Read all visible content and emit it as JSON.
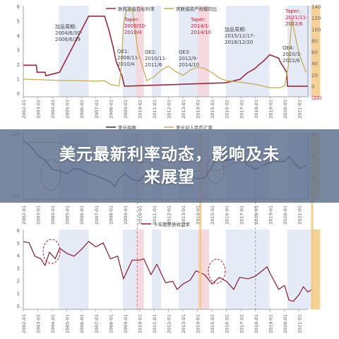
{
  "banner": {
    "line1": "美元最新利率动态，影响及未",
    "line2": "来展望"
  },
  "colors": {
    "fed": "#9b2a3e",
    "balance": "#c8a84a",
    "dxy": "#27285a",
    "cny": "#c9a86a",
    "ust10y": "#8a1a28",
    "easing_band": "#dfe6f5",
    "tightening_band": "#f7d7dc",
    "taper_band": "#f6c980",
    "annotation_red": "#d8142c",
    "circle": "#c0182c"
  },
  "chart_data": [
    {
      "type": "line",
      "x_ticks": [
        "2002-01",
        "2003-01",
        "2004-01",
        "2005-01",
        "2006-01",
        "2007-01",
        "2008-01",
        "2009-01",
        "2010-01",
        "2011-01",
        "2012-01",
        "2013-01",
        "2014-01",
        "2015-01",
        "2016-01",
        "2017-01",
        "2018-01",
        "2019-01",
        "2020-01",
        "2021-01"
      ],
      "legend": [
        "联邦基金目标利率",
        "美联储资产规模同比"
      ],
      "yleft_ticks": [
        "6",
        "5",
        "4",
        "3",
        "2",
        "1",
        "0"
      ],
      "yright_ticks": [
        "140",
        "120",
        "100",
        "80",
        "60",
        "40",
        "20",
        "0",
        "(20)"
      ],
      "ylim_left": [
        -0.5,
        6
      ],
      "ylim_right": [
        -25,
        145
      ],
      "series": [
        {
          "name": "联邦基金目标利率",
          "axis": "left",
          "x": [
            2002.0,
            2002.9,
            2002.95,
            2003.5,
            2003.55,
            2004.5,
            2005.0,
            2005.5,
            2006.0,
            2006.5,
            2007.6,
            2007.9,
            2008.2,
            2008.4,
            2008.8,
            2008.97,
            2015.95,
            2016.95,
            2017.2,
            2017.5,
            2017.95,
            2018.2,
            2018.5,
            2018.75,
            2018.97,
            2019.6,
            2019.7,
            2019.85,
            2020.15,
            2020.2,
            2021.6
          ],
          "y": [
            1.75,
            1.75,
            1.25,
            1.25,
            1.0,
            1.25,
            2.25,
            3.25,
            4.25,
            5.25,
            5.25,
            4.25,
            3.0,
            2.0,
            1.0,
            0.25,
            0.5,
            0.75,
            1.0,
            1.25,
            1.5,
            1.75,
            2.0,
            2.25,
            2.5,
            2.25,
            2.0,
            1.75,
            1.25,
            0.25,
            0.25
          ]
        },
        {
          "name": "美联储资产规模同比",
          "axis": "right",
          "x": [
            2002.0,
            2003.0,
            2004.0,
            2005.0,
            2006.0,
            2007.0,
            2007.6,
            2008.0,
            2008.6,
            2008.75,
            2008.9,
            2009.1,
            2009.5,
            2009.9,
            2010.5,
            2011.0,
            2011.5,
            2012.0,
            2012.5,
            2013.0,
            2013.5,
            2014.0,
            2014.5,
            2015.0,
            2015.5,
            2016.0,
            2017.0,
            2018.0,
            2018.5,
            2019.0,
            2019.7,
            2020.0,
            2020.25,
            2020.5,
            2021.0,
            2021.5
          ],
          "y": [
            8,
            7,
            6,
            5,
            5,
            4,
            5,
            -2,
            -5,
            30,
            110,
            135,
            140,
            60,
            5,
            12,
            25,
            32,
            22,
            15,
            25,
            30,
            28,
            20,
            10,
            5,
            2,
            -2,
            -5,
            -8,
            -8,
            -5,
            30,
            120,
            55,
            20
          ]
        }
      ],
      "annotations": [
        {
          "text": "加息周期:\n2004/6/30-\n2006/6/29",
          "color": "#444"
        },
        {
          "text": "Taper:\n2009/10-\n2010/4",
          "color": "#d8142c"
        },
        {
          "text": "QE1:\n2008/11-\n2010/4",
          "color": "#444"
        },
        {
          "text": "QE2:\n2010/11-\n2011/6",
          "color": "#444"
        },
        {
          "text": "QE3:\n2012/9-\n2014/10",
          "color": "#444"
        },
        {
          "text": "Taper:\n2014/1-\n2014/10",
          "color": "#d8142c"
        },
        {
          "text": "加息周期:\n2015/12/17-\n2018/12/20",
          "color": "#444"
        },
        {
          "text": "Taper:\n2021/11-\n2022/6",
          "color": "#d8142c"
        },
        {
          "text": "QE4:\n2020/3-\n2022/6",
          "color": "#444"
        }
      ]
    },
    {
      "type": "line",
      "x_ticks": [
        "2002-01",
        "2003-01",
        "2004-01",
        "2005-01",
        "2006-01",
        "2007-01",
        "2008-01",
        "2009-01",
        "2010-01",
        "2011-01",
        "2012-01",
        "2013-01",
        "2014-01",
        "2015-01",
        "2016-01",
        "2017-01",
        "2018-01",
        "2019-01",
        "2020-01",
        "2021-01"
      ],
      "legend": [
        "美元指数",
        "美元兑人民币汇率"
      ],
      "yleft_ticks": [
        "120",
        "100"
      ],
      "yright_ticks": [
        "9",
        "8",
        "7",
        "6"
      ],
      "ylim_left": [
        60,
        125
      ],
      "ylim_right": [
        4,
        9
      ],
      "series": [
        {
          "name": "美元指数",
          "axis": "left",
          "x": [
            2002.0,
            2002.5,
            2003.0,
            2003.5,
            2004.0,
            2004.5,
            2005.0,
            2005.5,
            2006.0,
            2006.5,
            2007.0,
            2007.5,
            2008.0,
            2008.3,
            2008.6,
            2009.0,
            2009.5,
            2010.0,
            2010.5,
            2011.0,
            2011.5,
            2012.0,
            2012.5,
            2013.0,
            2013.5,
            2014.0,
            2014.5,
            2015.0,
            2015.3,
            2016.0,
            2017.0,
            2017.5,
            2018.0,
            2018.5,
            2019.0,
            2019.5,
            2020.0,
            2020.3,
            2020.8,
            2021.0,
            2021.5
          ],
          "y": [
            117,
            112,
            103,
            98,
            89,
            88,
            85,
            90,
            89,
            85,
            83,
            80,
            77,
            72,
            80,
            85,
            79,
            78,
            86,
            77,
            75,
            79,
            82,
            80,
            82,
            80,
            81,
            92,
            99,
            98,
            100,
            93,
            89,
            93,
            96,
            97,
            97,
            102,
            93,
            90,
            93
          ]
        },
        {
          "name": "美元兑人民币汇率",
          "axis": "right",
          "x": [
            2002.0,
            2004.0,
            2005.5,
            2006.0,
            2007.0,
            2008.0,
            2008.6,
            2010.5,
            2011.0,
            2012.0,
            2013.0,
            2014.0,
            2015.5,
            2016.0,
            2017.0,
            2017.5,
            2018.0,
            2019.0,
            2019.8,
            2020.5,
            2021.0,
            2021.5
          ],
          "y": [
            8.28,
            8.28,
            8.11,
            8.05,
            7.8,
            7.2,
            6.83,
            6.83,
            6.6,
            6.35,
            6.25,
            6.1,
            6.2,
            6.5,
            6.95,
            6.75,
            6.3,
            6.7,
            7.05,
            7.0,
            6.45,
            6.4
          ]
        }
      ]
    },
    {
      "type": "line",
      "x_ticks": [
        "2002-01",
        "2003-01",
        "2004-01",
        "2005-01",
        "2006-01",
        "2007-01",
        "2008-01",
        "2009-01",
        "2010-01",
        "2011-01",
        "2012-01",
        "2013-01",
        "2014-01",
        "2015-01",
        "2016-01",
        "2017-01",
        "2018-01",
        "2019-01",
        "2020-01",
        "2021-01"
      ],
      "legend": [
        "十年期美债收益率"
      ],
      "yleft_ticks": [
        "6",
        "5",
        "4",
        "3",
        "2",
        "1",
        "0"
      ],
      "ylim_left": [
        0,
        6
      ],
      "series": [
        {
          "name": "十年期美债收益率",
          "axis": "left",
          "x": [
            2002.0,
            2002.4,
            2002.8,
            2003.2,
            2003.5,
            2003.8,
            2004.2,
            2004.5,
            2005.0,
            2005.5,
            2006.0,
            2006.5,
            2007.0,
            2007.5,
            2008.0,
            2008.5,
            2008.9,
            2009.2,
            2009.5,
            2010.0,
            2010.3,
            2010.8,
            2011.2,
            2011.8,
            2012.3,
            2012.6,
            2013.0,
            2013.5,
            2013.9,
            2014.5,
            2015.0,
            2015.5,
            2016.0,
            2016.5,
            2016.9,
            2017.5,
            2018.0,
            2018.8,
            2019.0,
            2019.6,
            2020.0,
            2020.3,
            2020.6,
            2021.0,
            2021.3,
            2021.6,
            2021.9
          ],
          "y": [
            5.1,
            5.0,
            4.0,
            3.8,
            3.3,
            4.3,
            3.8,
            4.6,
            4.2,
            4.0,
            4.5,
            5.1,
            4.7,
            5.0,
            3.8,
            4.0,
            2.3,
            3.0,
            3.7,
            3.7,
            3.8,
            2.6,
            3.4,
            2.0,
            2.1,
            1.5,
            1.9,
            2.2,
            2.9,
            2.6,
            1.9,
            2.4,
            2.1,
            1.5,
            2.4,
            2.3,
            2.5,
            3.2,
            2.7,
            1.5,
            1.8,
            0.7,
            0.6,
            1.1,
            1.7,
            1.3,
            1.5
          ]
        }
      ]
    }
  ]
}
